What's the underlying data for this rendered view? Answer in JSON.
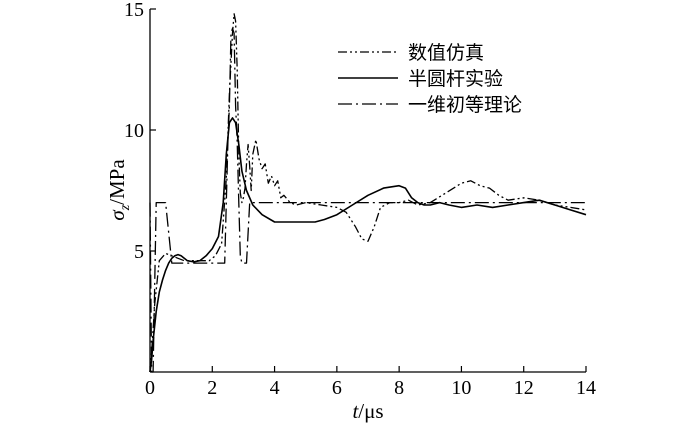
{
  "chart_data": {
    "type": "line",
    "xlabel": "t/μs",
    "ylabel": "σz/MPa",
    "ylabel_parts": {
      "sym": "σ",
      "sub": "z",
      "unit": "/MPa"
    },
    "xlabel_parts": {
      "sym": "t",
      "unit": "/μs"
    },
    "xlim": [
      0,
      14
    ],
    "ylim": [
      0,
      15
    ],
    "xticks": [
      0,
      2,
      4,
      6,
      8,
      10,
      12,
      14
    ],
    "yticks": [
      5,
      10,
      15
    ],
    "grid": false,
    "legend_position": "top-right",
    "series": [
      {
        "name": "数值仿真",
        "style": "dash-dot-dot",
        "x": [
          0,
          0.05,
          0.15,
          0.3,
          0.5,
          0.7,
          0.9,
          1.1,
          1.3,
          1.6,
          1.9,
          2.1,
          2.3,
          2.45,
          2.55,
          2.65,
          2.7,
          2.75,
          2.8,
          2.85,
          2.9,
          2.95,
          3.0,
          3.05,
          3.1,
          3.15,
          3.2,
          3.25,
          3.3,
          3.4,
          3.5,
          3.6,
          3.7,
          3.8,
          3.9,
          4.0,
          4.1,
          4.2,
          4.3,
          4.5,
          4.7,
          5.0,
          5.5,
          6.0,
          6.3,
          6.6,
          6.8,
          7.0,
          7.2,
          7.4,
          7.7,
          8.0,
          8.3,
          8.6,
          9.0,
          9.5,
          10.0,
          10.3,
          10.6,
          10.9,
          11.2,
          11.5,
          12.0,
          12.5,
          13.0,
          13.5,
          14.0
        ],
        "y": [
          0,
          0.8,
          2.8,
          4.6,
          4.9,
          4.8,
          4.7,
          4.6,
          4.6,
          4.6,
          4.6,
          4.8,
          5.3,
          8.0,
          11.5,
          14.0,
          14.8,
          14.5,
          12.5,
          9.0,
          7.4,
          7.0,
          7.2,
          7.6,
          8.6,
          9.4,
          8.5,
          7.5,
          9.0,
          9.6,
          8.8,
          8.4,
          8.6,
          7.8,
          8.1,
          7.7,
          7.9,
          7.2,
          7.3,
          7.0,
          6.9,
          7.0,
          6.9,
          6.8,
          6.6,
          6.0,
          5.5,
          5.4,
          6.0,
          6.8,
          7.0,
          7.0,
          7.1,
          6.9,
          7.0,
          7.4,
          7.8,
          7.9,
          7.7,
          7.6,
          7.3,
          7.1,
          7.2,
          7.1,
          6.9,
          6.8,
          6.7
        ]
      },
      {
        "name": "半圆杆实验",
        "style": "solid",
        "x": [
          0,
          0.05,
          0.1,
          0.2,
          0.3,
          0.4,
          0.5,
          0.6,
          0.7,
          0.8,
          0.9,
          1.0,
          1.2,
          1.4,
          1.6,
          1.8,
          2.0,
          2.2,
          2.35,
          2.45,
          2.55,
          2.65,
          2.75,
          2.85,
          2.95,
          3.1,
          3.3,
          3.6,
          4.0,
          4.5,
          5.0,
          5.3,
          5.6,
          6.0,
          6.5,
          7.0,
          7.5,
          8.0,
          8.2,
          8.4,
          8.6,
          8.8,
          9.0,
          9.3,
          9.6,
          10.0,
          10.5,
          11.0,
          11.5,
          12.0,
          12.5,
          13.0,
          13.5,
          14.0
        ],
        "y": [
          0,
          0.5,
          1.3,
          2.5,
          3.3,
          3.8,
          4.2,
          4.5,
          4.7,
          4.8,
          4.85,
          4.8,
          4.6,
          4.55,
          4.6,
          4.8,
          5.1,
          5.6,
          7.0,
          9.0,
          10.3,
          10.5,
          10.3,
          9.4,
          8.3,
          7.5,
          6.9,
          6.5,
          6.2,
          6.2,
          6.2,
          6.2,
          6.3,
          6.5,
          6.9,
          7.3,
          7.6,
          7.7,
          7.6,
          7.2,
          7.0,
          6.9,
          6.9,
          7.0,
          6.9,
          6.8,
          6.9,
          6.8,
          6.9,
          7.0,
          7.1,
          6.9,
          6.7,
          6.5
        ]
      },
      {
        "name": "一维初等理论",
        "style": "dash-dot",
        "x": [
          0,
          0.05,
          0.1,
          0.2,
          0.3,
          0.5,
          0.7,
          0.9,
          1.0,
          1.2,
          1.4,
          1.6,
          1.8,
          2.0,
          2.2,
          2.4,
          2.45,
          2.5,
          2.55,
          2.6,
          2.65,
          2.7,
          2.75,
          2.8,
          2.85,
          2.9,
          2.95,
          3.0,
          3.1,
          3.2,
          3.5,
          4.0,
          6.0,
          8.0,
          10.0,
          12.0,
          14.0
        ],
        "y": [
          7.0,
          0,
          0,
          7.0,
          7.0,
          7.0,
          4.5,
          4.5,
          4.5,
          4.5,
          4.5,
          4.5,
          4.5,
          4.5,
          4.5,
          4.5,
          7.0,
          9.5,
          11.0,
          14.0,
          14.2,
          14.0,
          11.0,
          9.5,
          7.0,
          4.8,
          4.5,
          4.5,
          4.5,
          7.0,
          7.0,
          7.0,
          7.0,
          7.0,
          7.0,
          7.0,
          7.0
        ]
      }
    ]
  }
}
